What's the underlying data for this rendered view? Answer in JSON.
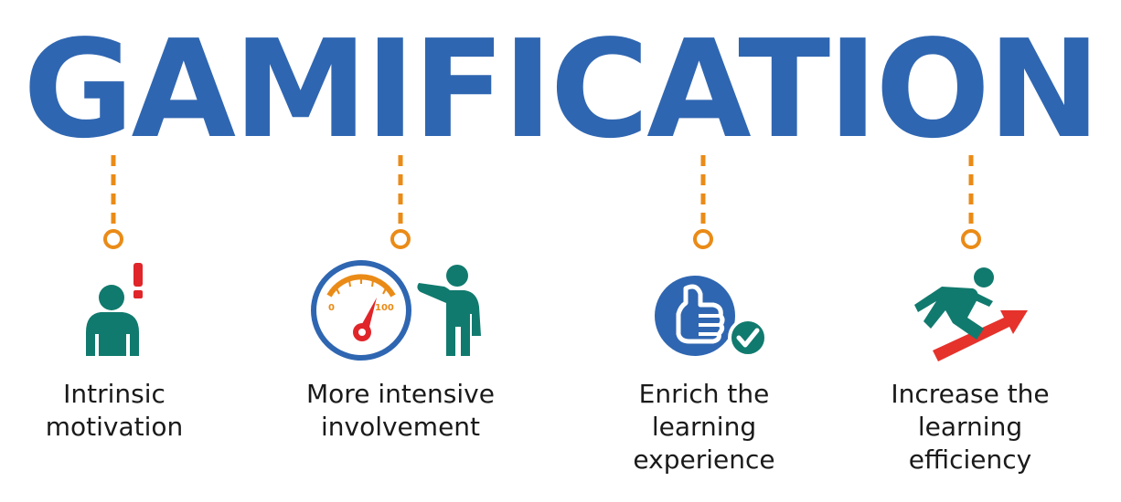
{
  "title": "GAMIFICATION",
  "colors": {
    "title_blue": "#2f66b1",
    "connector_orange": "#ea8b17",
    "figure_teal": "#117a6e",
    "alert_red": "#e0262a",
    "arrow_red": "#e5322b"
  },
  "items": [
    {
      "icon": "person-exclamation-icon",
      "label_lines": [
        "Intrinsic",
        "motivation"
      ]
    },
    {
      "icon": "gauge-and-pointing-person-icon",
      "gauge_labels": {
        "min": "0",
        "max": "100"
      },
      "label_lines": [
        "More intensive",
        "involvement"
      ]
    },
    {
      "icon": "thumbs-up-check-icon",
      "label_lines": [
        "Enrich the",
        "learning",
        "experience"
      ]
    },
    {
      "icon": "leaping-person-arrow-icon",
      "label_lines": [
        "Increase the",
        "learning",
        "efficiency"
      ]
    }
  ]
}
